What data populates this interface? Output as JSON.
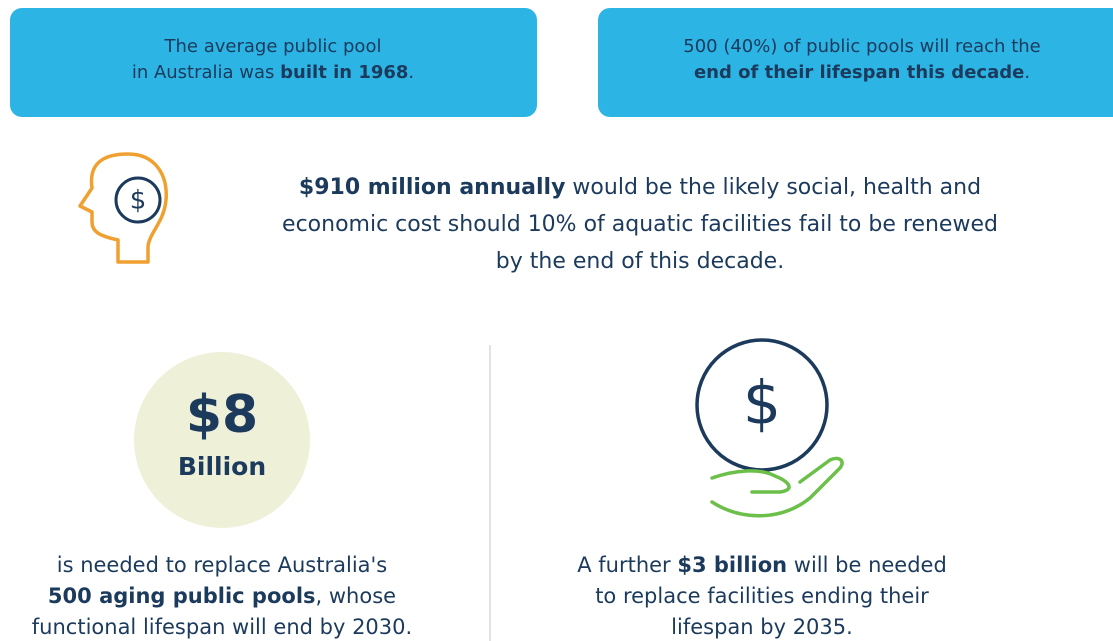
{
  "top_boxes": [
    {
      "lines": [
        [
          {
            "text": "The average public pool"
          }
        ],
        [
          {
            "text": "in Australia was "
          },
          {
            "text": "built in 1968",
            "bold": true
          },
          {
            "text": "."
          }
        ]
      ]
    },
    {
      "lines": [
        [
          {
            "text": "500 (40%) of public pools will reach the"
          }
        ],
        [
          {
            "text": "end of their lifespan this decade",
            "bold": true
          },
          {
            "text": "."
          }
        ]
      ]
    }
  ],
  "cost_note": {
    "icon_symbol": "$",
    "lines": [
      [
        {
          "text": "$910 million annually",
          "bold": true
        },
        {
          "text": " would be the likely social, health and"
        }
      ],
      [
        {
          "text": "economic cost should 10% of aquatic facilities fail to be renewed"
        }
      ],
      [
        {
          "text": "by the end of this decade."
        }
      ]
    ]
  },
  "eight_billion": {
    "figure": "$8",
    "unit": "Billion",
    "lines": [
      [
        {
          "text": "is needed to replace Australia's"
        }
      ],
      [
        {
          "text": "500 aging public pools",
          "bold": true
        },
        {
          "text": ", whose"
        }
      ],
      [
        {
          "text": "functional lifespan will end by 2030."
        }
      ]
    ]
  },
  "three_billion": {
    "icon_symbol": "$",
    "lines": [
      [
        {
          "text": "A further "
        },
        {
          "text": "$3 billion",
          "bold": true
        },
        {
          "text": " will be needed"
        }
      ],
      [
        {
          "text": "to replace facilities ending their"
        }
      ],
      [
        {
          "text": "lifespan by 2035."
        }
      ]
    ]
  }
}
